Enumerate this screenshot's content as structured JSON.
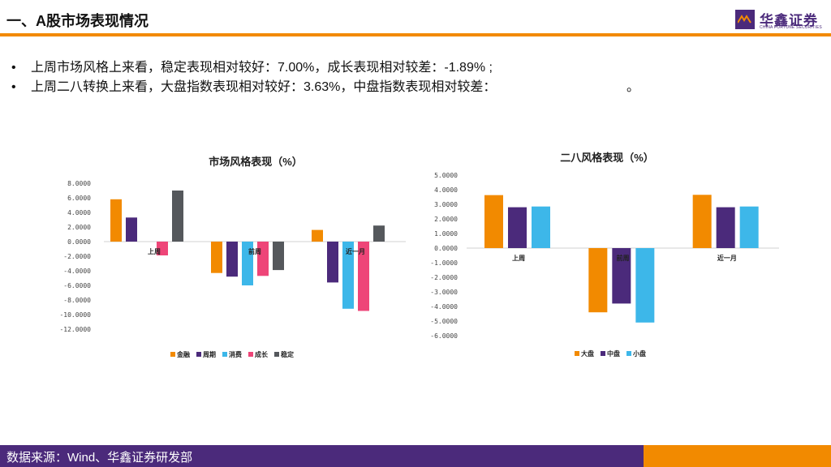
{
  "header": {
    "title": "一、A股市场表现情况",
    "logo": {
      "name": "华鑫证券",
      "english": "CHINA FORTUNE SECURITIES"
    }
  },
  "bullets": [
    {
      "text": "上周市场风格上来看，稳定表现相对较好：7.00%，成长表现相对较差：-1.89% ;",
      "tail": ""
    },
    {
      "text": "上周二八转换上来看，大盘指数表现相对较好：3.63%，中盘指数表现相对较差：",
      "tail": "。"
    }
  ],
  "footer": {
    "source": "数据来源：Wind、华鑫证券研发部"
  },
  "colors": {
    "orange": "#F28A00",
    "purple": "#4B2A7B",
    "cyan": "#3DB7E9",
    "pink": "#EE4578",
    "gray": "#55585C"
  },
  "chart_data": [
    {
      "type": "bar",
      "title": "市场风格表现（%）",
      "categories": [
        "上周",
        "前周",
        "近一月"
      ],
      "series": [
        {
          "name": "金融",
          "color": "#F28A00",
          "values": [
            5.8,
            -4.3,
            1.6
          ]
        },
        {
          "name": "周期",
          "color": "#4B2A7B",
          "values": [
            3.3,
            -4.8,
            -5.6
          ]
        },
        {
          "name": "消费",
          "color": "#3DB7E9",
          "values": [
            0.0,
            -6.0,
            -9.2
          ]
        },
        {
          "name": "成长",
          "color": "#EE4578",
          "values": [
            -1.89,
            -4.7,
            -9.5
          ]
        },
        {
          "name": "稳定",
          "color": "#55585C",
          "values": [
            7.0,
            -3.9,
            2.2
          ]
        }
      ],
      "ylim": [
        -12,
        8
      ],
      "yticks": [
        "8.0000",
        "6.0000",
        "4.0000",
        "2.0000",
        "0.0000",
        "-2.0000",
        "-4.0000",
        "-6.0000",
        "-8.0000",
        "-10.0000",
        "-12.0000"
      ],
      "legend": "bottom",
      "grid": false
    },
    {
      "type": "bar",
      "title": "二八风格表现（%）",
      "categories": [
        "上周",
        "前周",
        "近一月"
      ],
      "series": [
        {
          "name": "大盘",
          "color": "#F28A00",
          "values": [
            3.63,
            -4.4,
            3.65
          ]
        },
        {
          "name": "中盘",
          "color": "#4B2A7B",
          "values": [
            2.8,
            -3.8,
            2.8
          ]
        },
        {
          "name": "小盘",
          "color": "#3DB7E9",
          "values": [
            2.85,
            -5.1,
            2.85
          ]
        }
      ],
      "ylim": [
        -6,
        5
      ],
      "yticks": [
        "5.0000",
        "4.0000",
        "3.0000",
        "2.0000",
        "1.0000",
        "0.0000",
        "-1.0000",
        "-2.0000",
        "-3.0000",
        "-4.0000",
        "-5.0000",
        "-6.0000"
      ],
      "legend": "bottom",
      "grid": false
    }
  ]
}
